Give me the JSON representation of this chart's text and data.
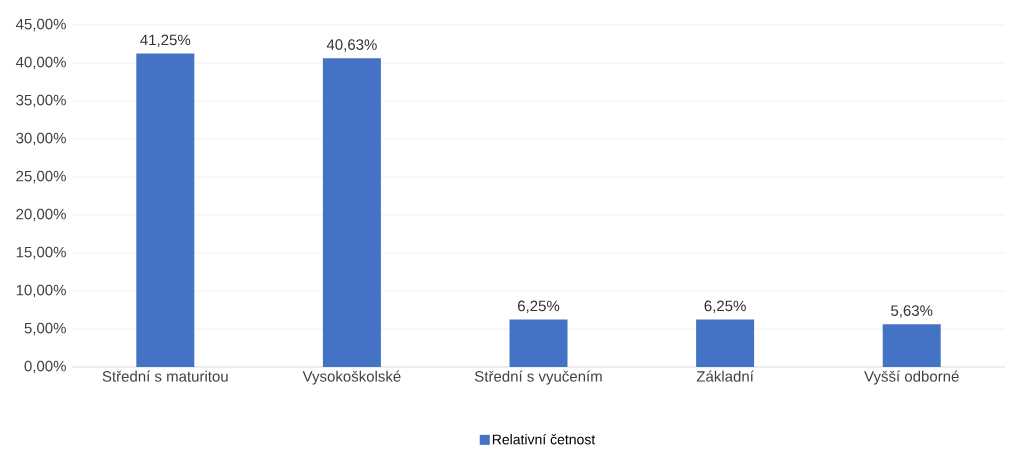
{
  "chart_data": {
    "type": "bar",
    "categories": [
      "Střední s maturitou",
      "Vysokoškolské",
      "Střední s vyučením",
      "Základní",
      "Vyšší odborné"
    ],
    "series": [
      {
        "name": "Relativní četnost",
        "color": "#4472c4",
        "values": [
          41.25,
          40.63,
          6.25,
          6.25,
          5.63
        ],
        "value_labels": [
          "41,25%",
          "40,63%",
          "6,25%",
          "6,25%",
          "5,63%"
        ]
      }
    ],
    "ylim": [
      0,
      45
    ],
    "yticks": [
      {
        "value": 0,
        "label": "0,00%"
      },
      {
        "value": 5,
        "label": "5,00%"
      },
      {
        "value": 10,
        "label": "10,00%"
      },
      {
        "value": 15,
        "label": "15,00%"
      },
      {
        "value": 20,
        "label": "20,00%"
      },
      {
        "value": 25,
        "label": "25,00%"
      },
      {
        "value": 30,
        "label": "30,00%"
      },
      {
        "value": 35,
        "label": "35,00%"
      },
      {
        "value": 40,
        "label": "40,00%"
      },
      {
        "value": 45,
        "label": "45,00%"
      }
    ],
    "grid": "y",
    "legend": "bottom"
  }
}
